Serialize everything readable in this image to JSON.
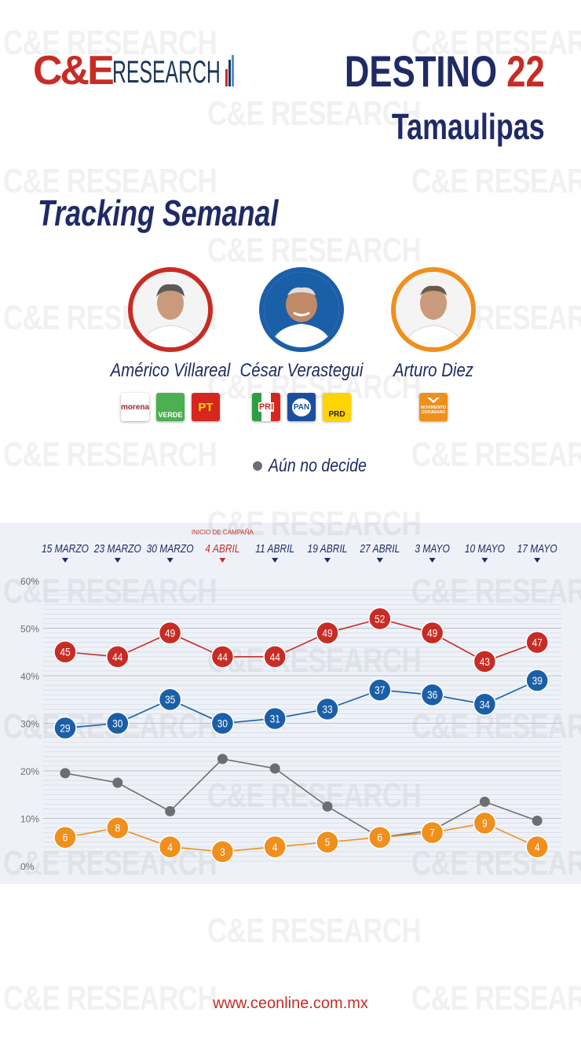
{
  "header": {
    "logo_ce": "C&E",
    "logo_research": "RESEARCH",
    "title_word": "DESTINO",
    "title_number": "22",
    "state": "Tamaulipas",
    "subtitle": "Tracking Semanal"
  },
  "candidates": [
    {
      "name": "Américo Villareal",
      "ring_color": "#c72c25",
      "parties": [
        "morena",
        "VERDE",
        "PT"
      ]
    },
    {
      "name": "César Verastegui",
      "ring_color": "#1a5fa8",
      "parties": [
        "PRI",
        "PAN",
        "PRD"
      ]
    },
    {
      "name": "Arturo Diez",
      "ring_color": "#ef8f1d",
      "parties": [
        "MOVIMIENTO CIUDADANO"
      ]
    }
  ],
  "legend": {
    "undecided_label": "Aún no decide"
  },
  "chart_data": {
    "type": "line",
    "categories": [
      "15 MARZO",
      "23 MARZO",
      "30 MARZO",
      "4 ABRIL",
      "11 ABRIL",
      "19 ABRIL",
      "27 ABRIL",
      "3 MAYO",
      "10 MAYO",
      "17 MAYO"
    ],
    "highlight_category": "4 ABRIL",
    "highlight_note": "INICIO DE CAMPAÑA",
    "y_ticks": [
      "0%",
      "10%",
      "20%",
      "30%",
      "40%",
      "50%",
      "60%"
    ],
    "ylim": [
      0,
      60
    ],
    "series": [
      {
        "color": "#c72c25",
        "values": [
          45,
          44,
          49,
          44,
          44,
          49,
          52,
          49,
          43,
          47
        ],
        "labels": true
      },
      {
        "color": "#1a5fa8",
        "values": [
          29,
          30,
          35,
          30,
          31,
          33,
          37,
          36,
          34,
          39
        ],
        "labels": true
      },
      {
        "name": "Aún no decide",
        "color": "#6d6e71",
        "values": [
          19.5,
          17.5,
          11.5,
          22.5,
          20.5,
          12.5,
          6,
          7.5,
          13.5,
          9.5
        ],
        "labels": false
      },
      {
        "color": "#ef8f1d",
        "values": [
          6,
          8,
          4,
          3,
          4,
          5,
          6,
          7,
          9,
          4
        ],
        "labels": true
      }
    ]
  },
  "footer": {
    "url": "www.ceonline.com.mx"
  }
}
